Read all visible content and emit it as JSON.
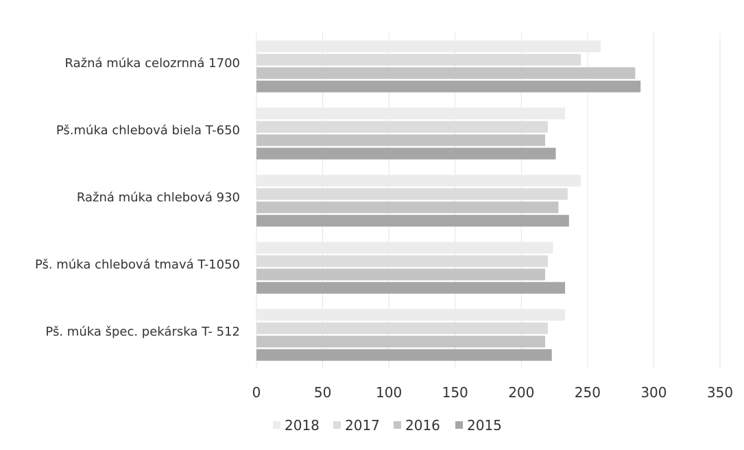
{
  "chart_data": {
    "type": "bar",
    "orientation": "horizontal",
    "categories": [
      "Ražná múka celozrnná 1700",
      "Pš.múka chlebová biela T-650",
      "Ražná múka chlebová 930",
      "Pš. múka chlebová tmavá T-1050",
      "Pš. múka špec. pekárska T- 512"
    ],
    "series": [
      {
        "name": "2018",
        "color": "#ececec",
        "values": [
          260,
          233,
          245,
          224,
          233
        ]
      },
      {
        "name": "2017",
        "color": "#dcdcdc",
        "values": [
          245,
          220,
          235,
          220,
          220
        ]
      },
      {
        "name": "2016",
        "color": "#c4c4c4",
        "values": [
          286,
          218,
          228,
          218,
          218
        ]
      },
      {
        "name": "2015",
        "color": "#a6a6a6",
        "values": [
          290,
          226,
          236,
          233,
          223
        ]
      }
    ],
    "x_ticks": [
      0,
      50,
      100,
      150,
      200,
      250,
      300,
      350
    ],
    "xlim": [
      0,
      350
    ],
    "grid": true,
    "legend_position": "bottom"
  }
}
